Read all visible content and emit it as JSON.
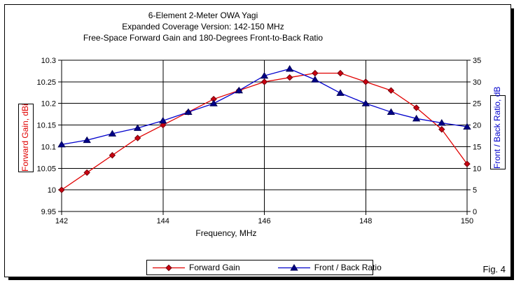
{
  "header": {
    "line1": "6-Element 2-Meter OWA Yagi",
    "line2": "Expanded Coverage Version: 142-150 MHz",
    "line3": "Free-Space Forward Gain and 180-Degrees Front-to-Back Ratio"
  },
  "footer": {
    "fig_label": "Fig. 4"
  },
  "chart_data": {
    "type": "line",
    "title": "6-Element 2-Meter OWA Yagi — Expanded Coverage Version: 142-150 MHz — Free-Space Forward Gain and 180-Degrees Front-to-Back Ratio",
    "grid": true,
    "legend_position": "bottom",
    "x": [
      142,
      142.5,
      143,
      143.5,
      144,
      144.5,
      145,
      145.5,
      146,
      146.5,
      147,
      147.5,
      148,
      148.5,
      149,
      149.5,
      150
    ],
    "series": [
      {
        "name": "Forward Gain",
        "axis": "left",
        "marker": "diamond",
        "color": "#e00000",
        "marker_fill": "#cc0011",
        "marker_stroke": "#70000a",
        "values": [
          10.0,
          10.04,
          10.08,
          10.12,
          10.15,
          10.18,
          10.21,
          10.23,
          10.25,
          10.26,
          10.27,
          10.27,
          10.25,
          10.23,
          10.19,
          10.14,
          10.06
        ]
      },
      {
        "name": "Front / Back Ratio",
        "axis": "right",
        "marker": "triangle",
        "color": "#0000cc",
        "marker_fill": "#000088",
        "marker_stroke": "#000055",
        "values": [
          15.5,
          16.5,
          18.0,
          19.3,
          21.0,
          23.0,
          25.0,
          28.0,
          31.4,
          33.0,
          30.5,
          27.4,
          25.0,
          23.0,
          21.5,
          20.5,
          19.6
        ]
      }
    ],
    "x_axis": {
      "label": "Frequency, MHz",
      "min": 142,
      "max": 150,
      "major_ticks": [
        142,
        144,
        146,
        148,
        150
      ],
      "tick_labels": [
        "142",
        "144",
        "146",
        "148",
        "150"
      ]
    },
    "y_left": {
      "label": "Forward Gain,  dBi",
      "color": "#e00000",
      "min": 9.95,
      "max": 10.3,
      "ticks": [
        10.3,
        10.25,
        10.2,
        10.15,
        10.1,
        10.05,
        10,
        9.95
      ],
      "tick_labels": [
        "10.3",
        "10.25",
        "10.2",
        "10.15",
        "10.1",
        "10.05",
        "10",
        "9.95"
      ]
    },
    "y_right": {
      "label": "Front / Back Ratio,  dB",
      "color": "#0000cc",
      "min": 0,
      "max": 35,
      "ticks": [
        35,
        30,
        25,
        20,
        15,
        10,
        5,
        0
      ],
      "tick_labels": [
        "35",
        "30",
        "25",
        "20",
        "15",
        "10",
        "5",
        "0"
      ]
    }
  }
}
